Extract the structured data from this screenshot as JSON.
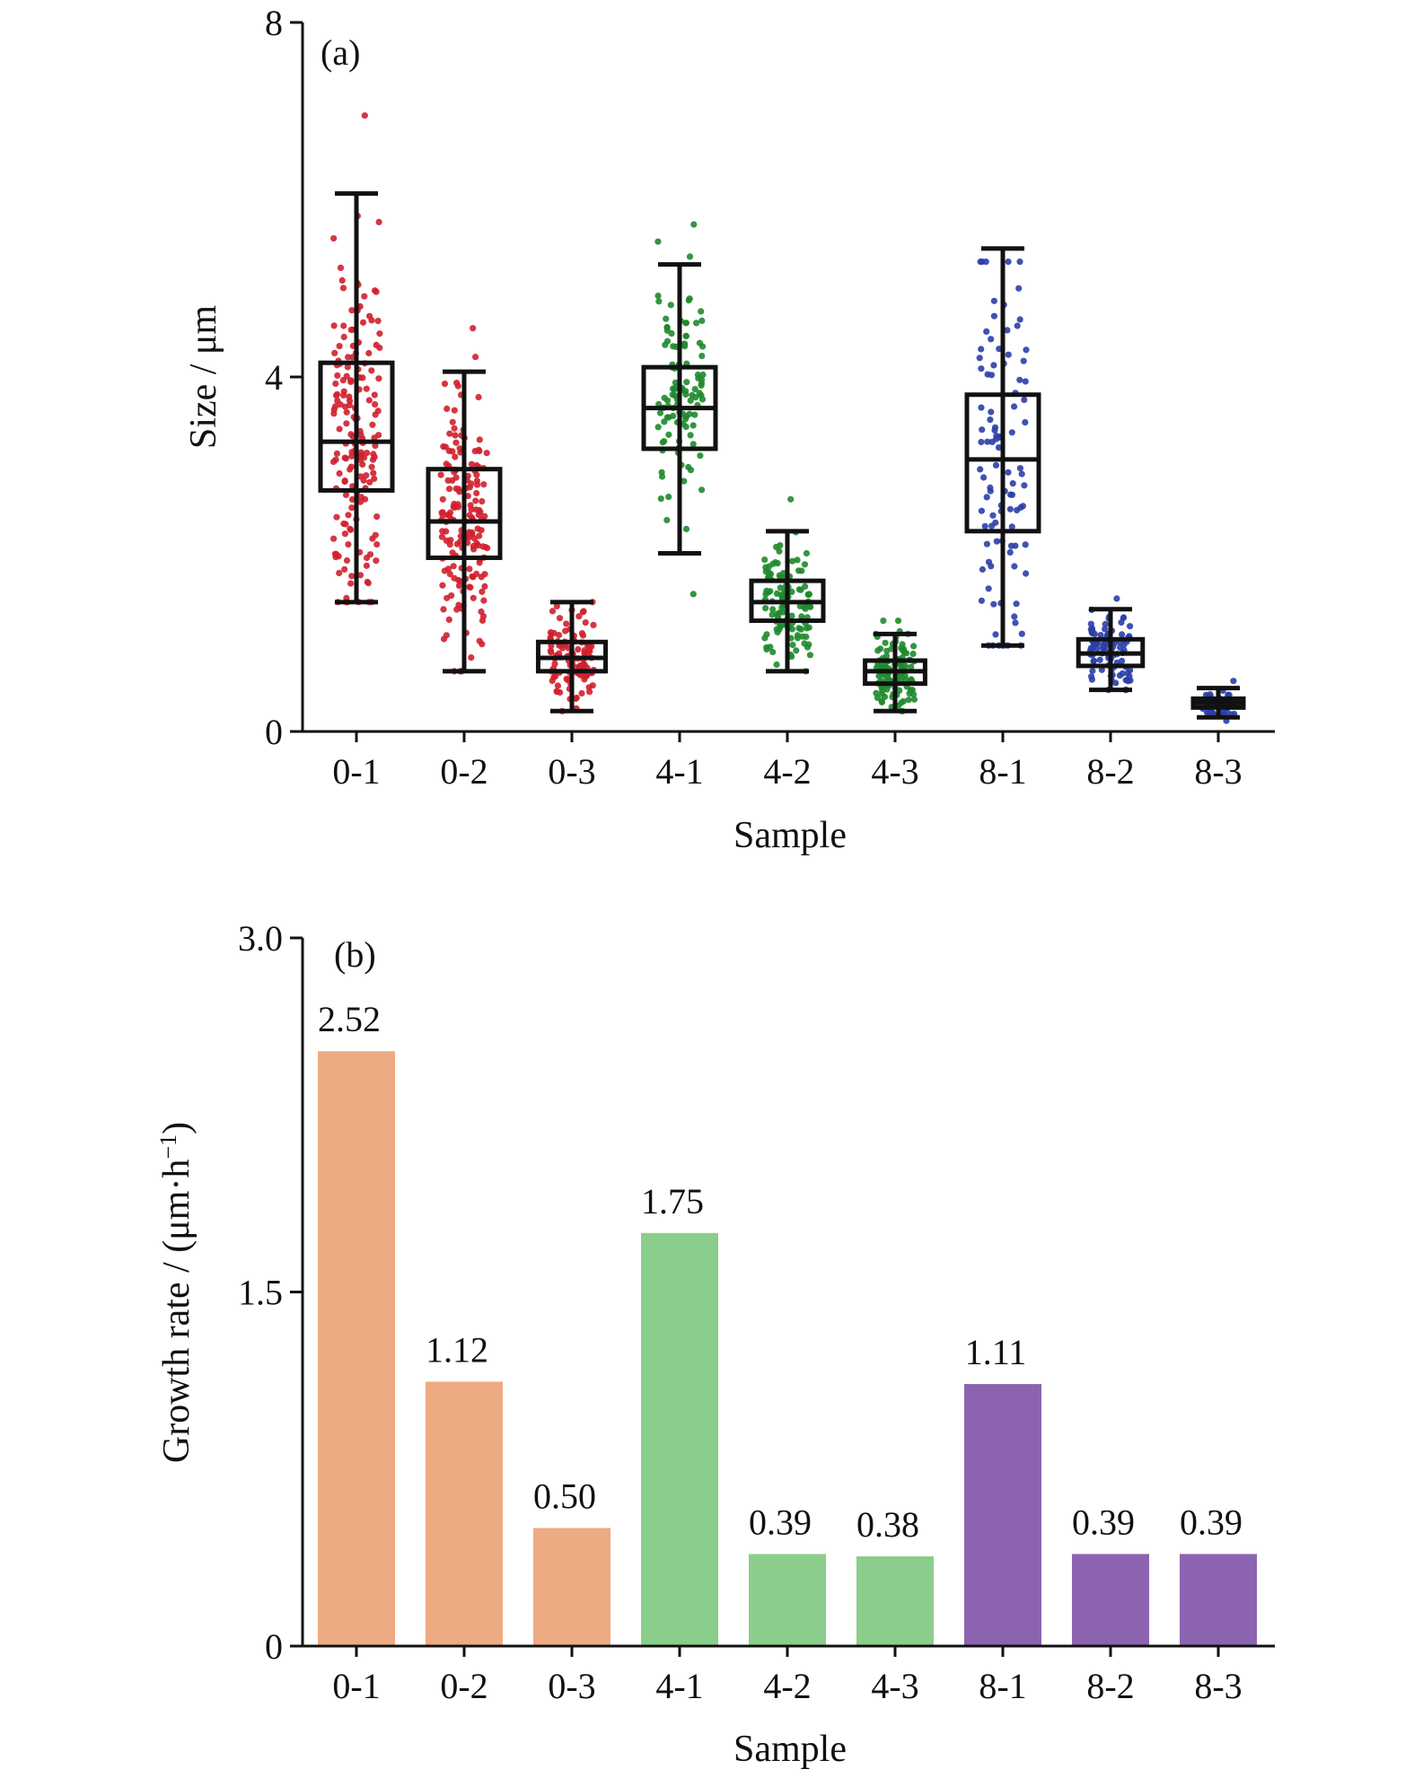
{
  "figure": {
    "xlabel": "Sample"
  },
  "chart_data": [
    {
      "type": "box",
      "panel_label": "(a)",
      "xlabel": "Sample",
      "ylabel": "Size / μm",
      "ylim": [
        0,
        8
      ],
      "yticks": [
        "0",
        "4",
        "8"
      ],
      "categories": [
        "0-1",
        "0-2",
        "0-3",
        "4-1",
        "4-2",
        "4-3",
        "8-1",
        "8-2",
        "8-3"
      ],
      "group_colors": [
        "#d0202e",
        "#d0202e",
        "#d0202e",
        "#1f8a2e",
        "#1f8a2e",
        "#1f8a2e",
        "#2b3fa8",
        "#2b3fa8",
        "#2b3fa8"
      ],
      "boxes": [
        {
          "whisker_low": 1.46,
          "q1": 2.72,
          "median": 3.27,
          "q3": 4.16,
          "whisker_high": 6.07,
          "point_min": 1.46,
          "point_max": 6.95
        },
        {
          "whisker_low": 0.68,
          "q1": 1.96,
          "median": 2.37,
          "q3": 2.96,
          "whisker_high": 4.06,
          "point_min": 0.68,
          "point_max": 4.55
        },
        {
          "whisker_low": 0.23,
          "q1": 0.68,
          "median": 0.83,
          "q3": 1.01,
          "whisker_high": 1.46,
          "point_min": 0.23,
          "point_max": 1.46
        },
        {
          "whisker_low": 2.01,
          "q1": 3.19,
          "median": 3.65,
          "q3": 4.11,
          "whisker_high": 5.27,
          "point_min": 1.55,
          "point_max": 5.72
        },
        {
          "whisker_low": 0.68,
          "q1": 1.25,
          "median": 1.46,
          "q3": 1.7,
          "whisker_high": 2.26,
          "point_min": 0.68,
          "point_max": 2.62
        },
        {
          "whisker_low": 0.23,
          "q1": 0.54,
          "median": 0.68,
          "q3": 0.8,
          "whisker_high": 1.1,
          "point_min": 0.23,
          "point_max": 1.25
        },
        {
          "whisker_low": 0.97,
          "q1": 2.26,
          "median": 3.07,
          "q3": 3.8,
          "whisker_high": 5.45,
          "point_min": 0.97,
          "point_max": 5.3
        },
        {
          "whisker_low": 0.47,
          "q1": 0.74,
          "median": 0.88,
          "q3": 1.04,
          "whisker_high": 1.38,
          "point_min": 0.47,
          "point_max": 1.5
        },
        {
          "whisker_low": 0.16,
          "q1": 0.27,
          "median": 0.32,
          "q3": 0.37,
          "whisker_high": 0.49,
          "point_min": 0.12,
          "point_max": 0.57
        }
      ],
      "point_counts": [
        170,
        170,
        110,
        110,
        120,
        110,
        100,
        90,
        60
      ]
    },
    {
      "type": "bar",
      "panel_label": "(b)",
      "xlabel": "Sample",
      "ylabel": "Growth rate / (μm·h",
      "ylabel_sup": "−1",
      "ylabel_end": ")",
      "ylim": [
        0,
        3.0
      ],
      "yticks": [
        "0",
        "1.5",
        "3.0"
      ],
      "categories": [
        "0-1",
        "0-2",
        "0-3",
        "4-1",
        "4-2",
        "4-3",
        "8-1",
        "8-2",
        "8-3"
      ],
      "values": [
        2.52,
        1.12,
        0.5,
        1.75,
        0.39,
        0.38,
        1.11,
        0.39,
        0.39
      ],
      "labels": [
        "2.52",
        "1.12",
        "0.50",
        "1.75",
        "0.39",
        "0.38",
        "1.11",
        "0.39",
        "0.39"
      ],
      "colors": [
        "#eeaa82",
        "#eeaa82",
        "#eeaa82",
        "#8bcd8b",
        "#8bcd8b",
        "#8bcd8b",
        "#8c63b0",
        "#8c63b0",
        "#8c63b0"
      ]
    }
  ]
}
